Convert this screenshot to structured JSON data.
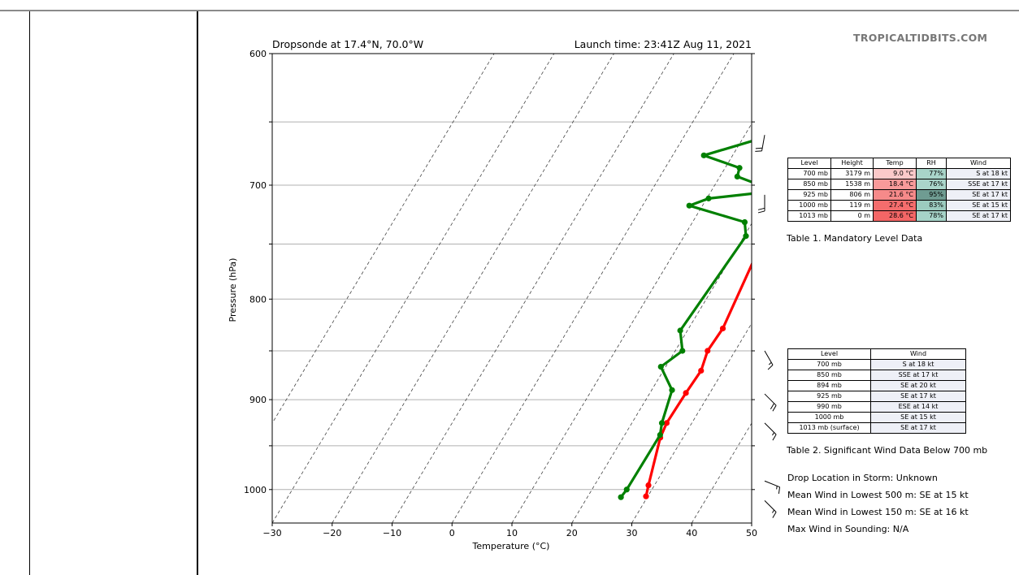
{
  "header": {
    "title_left": "Dropsonde at 17.4°N, 70.0°W",
    "title_right": "Launch time: 23:41Z Aug 11, 2021",
    "brand": "TROPICALTIDBITS.COM"
  },
  "chart_data": {
    "type": "line",
    "title": "Dropsonde at 17.4°N, 70.0°W",
    "xlabel": "Temperature (°C)",
    "ylabel": "Pressure (hPa)",
    "xlim": [
      -30,
      50
    ],
    "ylim": [
      1040,
      600
    ],
    "y_scale": "log",
    "x_ticks": [
      -30,
      -20,
      -10,
      0,
      10,
      20,
      30,
      40,
      50
    ],
    "x_tick_labels": [
      "−30",
      "−20",
      "−10",
      "0",
      "10",
      "20",
      "30",
      "40",
      "50"
    ],
    "y_ticks": [
      600,
      700,
      800,
      900,
      1000
    ],
    "y_tick_labels": [
      "600",
      "700",
      "800",
      "900",
      "1000"
    ],
    "horizontal_grid": [
      600,
      650,
      700,
      750,
      800,
      850,
      900,
      950,
      1000
    ],
    "skew_isotherms": [
      -40,
      -30,
      -20,
      -10,
      0,
      10,
      20,
      30,
      40,
      50,
      60,
      70,
      80
    ],
    "series": [
      {
        "color": "#ff0000",
        "pressure": [
          650,
          660,
          676,
          683,
          692,
          703,
          706,
          712,
          720,
          730,
          742,
          828,
          850,
          870,
          893,
          925,
          941,
          995,
          1008
        ],
        "temperature": [
          21.5,
          21.8,
          22.4,
          22.3,
          22.8,
          22.6,
          22.9,
          23.1,
          23.6,
          23.6,
          23.4,
          25.7,
          25.4,
          26.3,
          26.0,
          25.8,
          26.2,
          29.0,
          29.7
        ]
      },
      {
        "color": "#008000",
        "pressure": [
          650,
          660,
          676,
          686,
          693,
          702,
          705,
          711,
          717,
          731,
          743,
          830,
          850,
          866,
          890,
          925,
          938,
          1000,
          1009
        ],
        "temperature": [
          14.3,
          14.6,
          5.2,
          12.4,
          12.9,
          18.9,
          20.4,
          10.3,
          7.8,
          18.7,
          20.3,
          18.8,
          21.2,
          19.2,
          23.4,
          25.0,
          25.9,
          25.8,
          25.6
        ]
      }
    ],
    "wind_barbs": [
      {
        "pressure": 660,
        "direction_deg": 190,
        "speed_kt": 20
      },
      {
        "pressure": 708,
        "direction_deg": 180,
        "speed_kt": 18
      },
      {
        "pressure": 850,
        "direction_deg": 150,
        "speed_kt": 17
      },
      {
        "pressure": 894,
        "direction_deg": 135,
        "speed_kt": 20
      },
      {
        "pressure": 925,
        "direction_deg": 135,
        "speed_kt": 17
      },
      {
        "pressure": 990,
        "direction_deg": 112,
        "speed_kt": 14
      },
      {
        "pressure": 1013,
        "direction_deg": 135,
        "speed_kt": 17
      }
    ]
  },
  "table1": {
    "headers": [
      "Level",
      "Height",
      "Temp",
      "RH",
      "Wind"
    ],
    "rows": [
      {
        "level": "700 mb",
        "height": "3179 m",
        "temp": "9.0 °C",
        "rh": "77%",
        "wind": "S at 18 kt",
        "temp_color": "#fbc9c9",
        "rh_color": "#a8d4c9"
      },
      {
        "level": "850 mb",
        "height": "1538 m",
        "temp": "18.4 °C",
        "rh": "76%",
        "wind": "SSE at 17 kt",
        "temp_color": "#f89a9a",
        "rh_color": "#aad5ca"
      },
      {
        "level": "925 mb",
        "height": "806 m",
        "temp": "21.6 °C",
        "rh": "95%",
        "wind": "SE at 17 kt",
        "temp_color": "#f68a8a",
        "rh_color": "#6f9c92"
      },
      {
        "level": "1000 mb",
        "height": "119 m",
        "temp": "27.4 °C",
        "rh": "83%",
        "wind": "SE at 15 kt",
        "temp_color": "#f46d6d",
        "rh_color": "#9ccbbf"
      },
      {
        "level": "1013 mb",
        "height": "0 m",
        "temp": "28.6 °C",
        "rh": "78%",
        "wind": "SE at 17 kt",
        "temp_color": "#f36666",
        "rh_color": "#a6d3c8"
      }
    ],
    "caption": "Table 1. Mandatory Level Data"
  },
  "table2": {
    "headers": [
      "Level",
      "Wind"
    ],
    "rows": [
      {
        "level": "700 mb",
        "wind": "S at 18 kt"
      },
      {
        "level": "850 mb",
        "wind": "SSE at 17 kt"
      },
      {
        "level": "894 mb",
        "wind": "SE at 20 kt"
      },
      {
        "level": "925 mb",
        "wind": "SE at 17 kt"
      },
      {
        "level": "990 mb",
        "wind": "ESE at 14 kt"
      },
      {
        "level": "1000 mb",
        "wind": "SE at 15 kt"
      },
      {
        "level": "1013 mb (surface)",
        "wind": "SE at 17 kt"
      }
    ],
    "caption": "Table 2. Significant Wind Data Below 700 mb"
  },
  "info": {
    "drop_location": "Drop Location in Storm: Unknown",
    "mean_wind_500": "Mean Wind in Lowest 500 m:  SE at 15 kt",
    "mean_wind_150": "Mean Wind in Lowest 150 m:  SE at 16 kt",
    "max_wind": "Max Wind in Sounding:  N/A"
  }
}
